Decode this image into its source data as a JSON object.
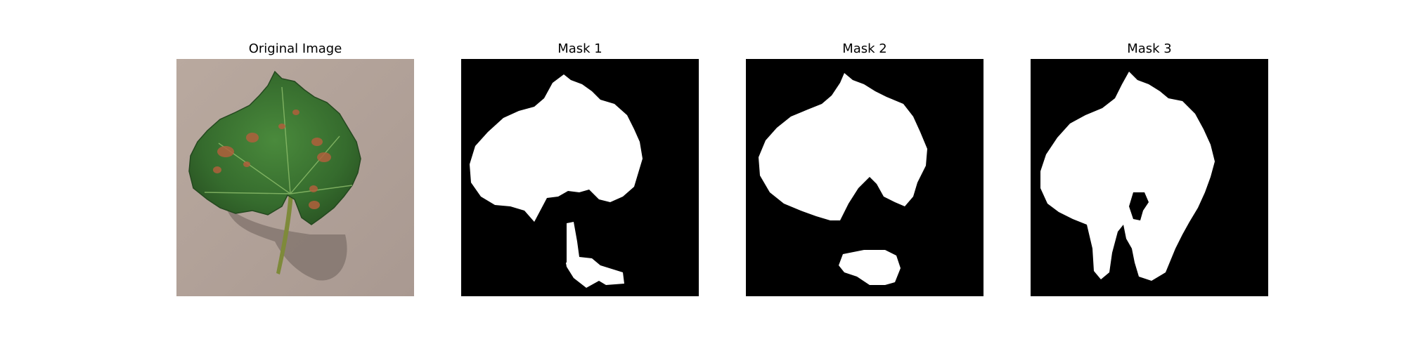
{
  "figure": {
    "panels": [
      {
        "title": "Original Image"
      },
      {
        "title": "Mask 1"
      },
      {
        "title": "Mask 2"
      },
      {
        "title": "Mask 3"
      }
    ]
  },
  "colors": {
    "background_photo": "#b3a39a",
    "leaf_dark": "#2f5a28",
    "leaf_mid": "#3e7a34",
    "lesion": "#b0603c",
    "stem": "#7e8a3a",
    "mask_fg": "#ffffff",
    "mask_bg": "#000000"
  }
}
